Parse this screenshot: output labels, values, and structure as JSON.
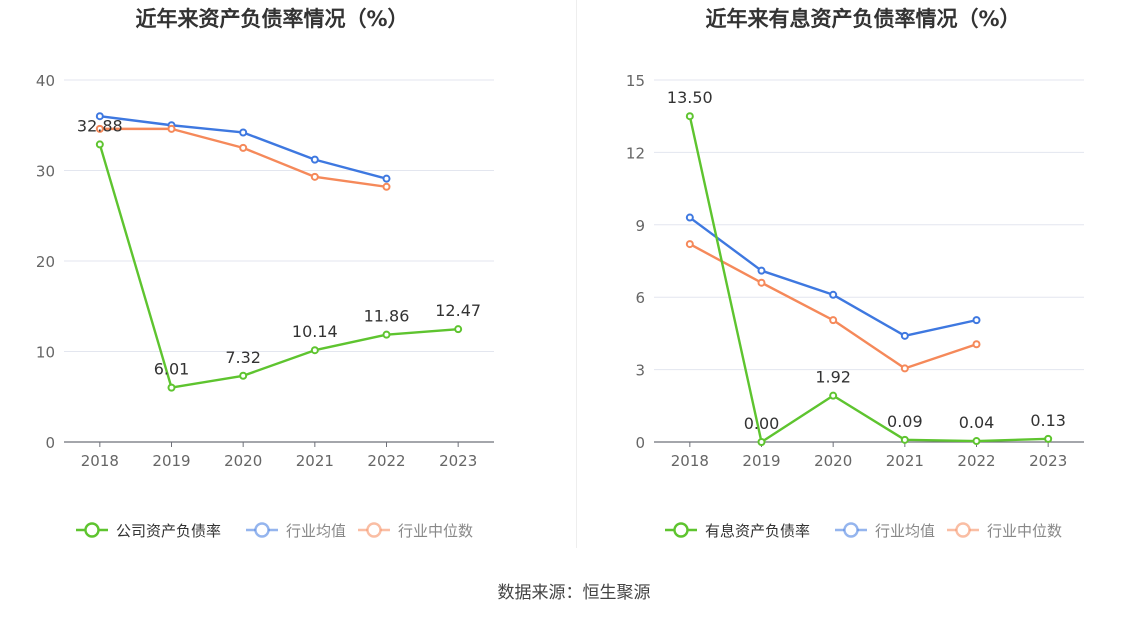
{
  "source": "数据来源：恒生聚源",
  "chart_data": [
    {
      "type": "line",
      "title": "近年来资产负债率情况（%）",
      "categories": [
        "2018",
        "2019",
        "2020",
        "2021",
        "2022",
        "2023"
      ],
      "ylim": [
        0,
        40
      ],
      "yticks": [
        0,
        10,
        20,
        30,
        40
      ],
      "grid": true,
      "legend_position": "bottom",
      "series": [
        {
          "name": "公司资产负债率",
          "color": "#5ec42f",
          "values": [
            32.88,
            6.01,
            7.32,
            10.14,
            11.86,
            12.47
          ],
          "labels": [
            "32.88",
            "6.01",
            "7.32",
            "10.14",
            "11.86",
            "12.47"
          ]
        },
        {
          "name": "行业均值",
          "color": "#3e78e0",
          "values": [
            36.0,
            35.0,
            34.2,
            31.2,
            29.1,
            null
          ]
        },
        {
          "name": "行业中位数",
          "color": "#f5895a",
          "values": [
            34.6,
            34.6,
            32.5,
            29.3,
            28.2,
            null
          ]
        }
      ]
    },
    {
      "type": "line",
      "title": "近年来有息资产负债率情况（%）",
      "categories": [
        "2018",
        "2019",
        "2020",
        "2021",
        "2022",
        "2023"
      ],
      "ylim": [
        0,
        15
      ],
      "yticks": [
        0,
        3,
        6,
        9,
        12,
        15
      ],
      "grid": true,
      "legend_position": "bottom",
      "series": [
        {
          "name": "有息资产负债率",
          "color": "#5ec42f",
          "values": [
            13.5,
            0.0,
            1.92,
            0.09,
            0.04,
            0.13
          ],
          "labels": [
            "13.50",
            "0.00",
            "1.92",
            "0.09",
            "0.04",
            "0.13"
          ]
        },
        {
          "name": "行业均值",
          "color": "#3e78e0",
          "values": [
            9.3,
            7.1,
            6.1,
            4.4,
            5.05,
            null
          ]
        },
        {
          "name": "行业中位数",
          "color": "#f5895a",
          "values": [
            8.2,
            6.6,
            5.05,
            3.05,
            4.05,
            null
          ]
        }
      ]
    }
  ]
}
